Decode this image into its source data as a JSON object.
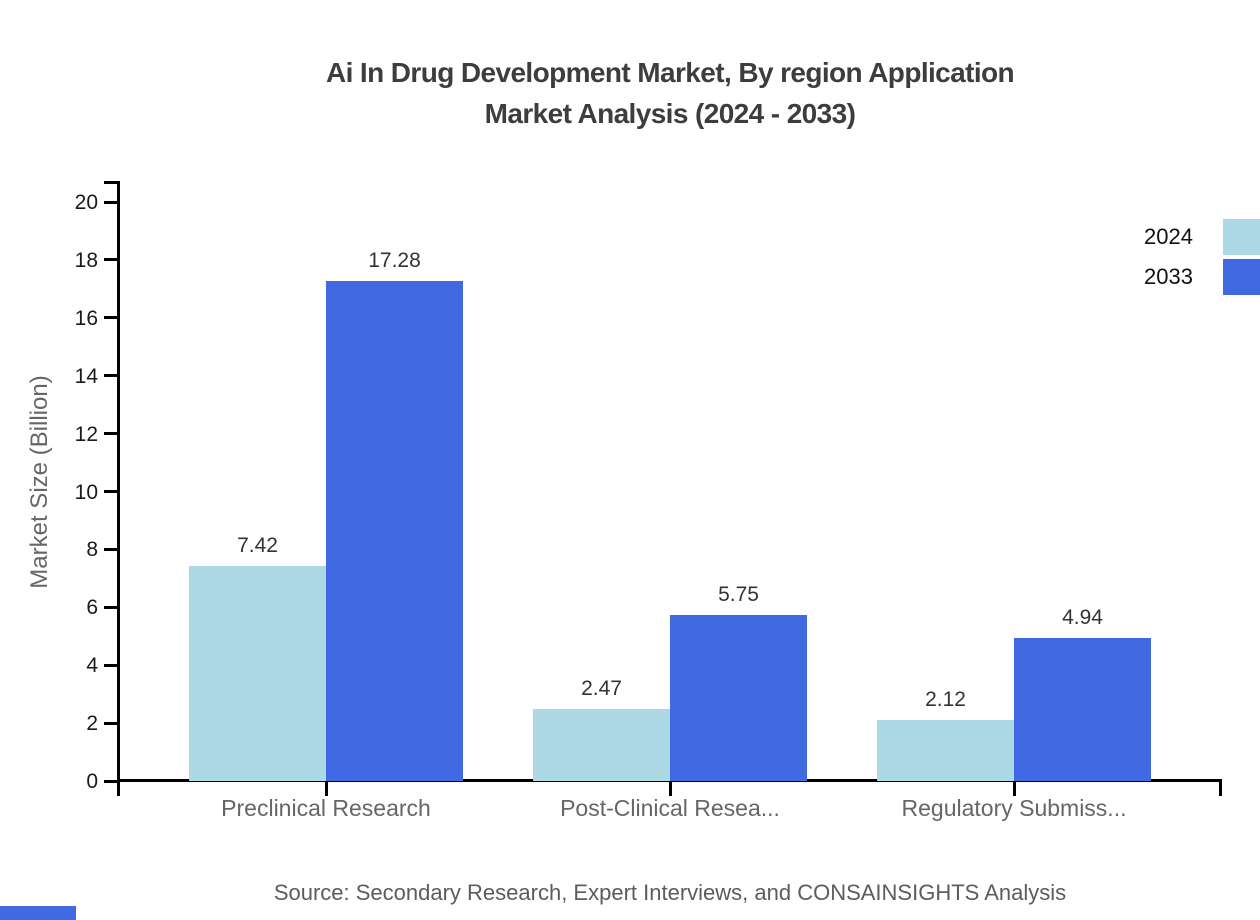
{
  "title": {
    "line1": "Ai In Drug Development Market, By region Application",
    "line2": "Market Analysis (2024 - 2033)"
  },
  "legend": [
    {
      "label": "2024",
      "color": "#ADD8E6"
    },
    {
      "label": "2033",
      "color": "#4169E1"
    }
  ],
  "chart_data": {
    "type": "bar",
    "title": "Ai In Drug Development Market, By region Application Market Analysis (2024 - 2033)",
    "categories": [
      "Preclinical Research",
      "Post-Clinical Resea...",
      "Regulatory Submiss..."
    ],
    "series": [
      {
        "name": "2024",
        "color": "#ADD8E6",
        "values": [
          7.42,
          2.47,
          2.12
        ]
      },
      {
        "name": "2033",
        "color": "#4169E1",
        "values": [
          17.28,
          5.75,
          4.94
        ]
      }
    ],
    "xlabel": "",
    "ylabel": "Market Size (Billion)",
    "ylim": [
      0,
      20
    ],
    "ytick_step": 2,
    "grid": false,
    "legend_position": "top-right",
    "value_labels": true
  },
  "source": "Source: Secondary Research, Expert Interviews, and CONSAINSIGHTS Analysis",
  "colors": {
    "series_2024": "#ADD8E6",
    "series_2033": "#4169E1",
    "title_text": "#3d3d3d",
    "axis": "#000000",
    "gray_labels": "#666666",
    "brand_bar": "#4169E1"
  }
}
